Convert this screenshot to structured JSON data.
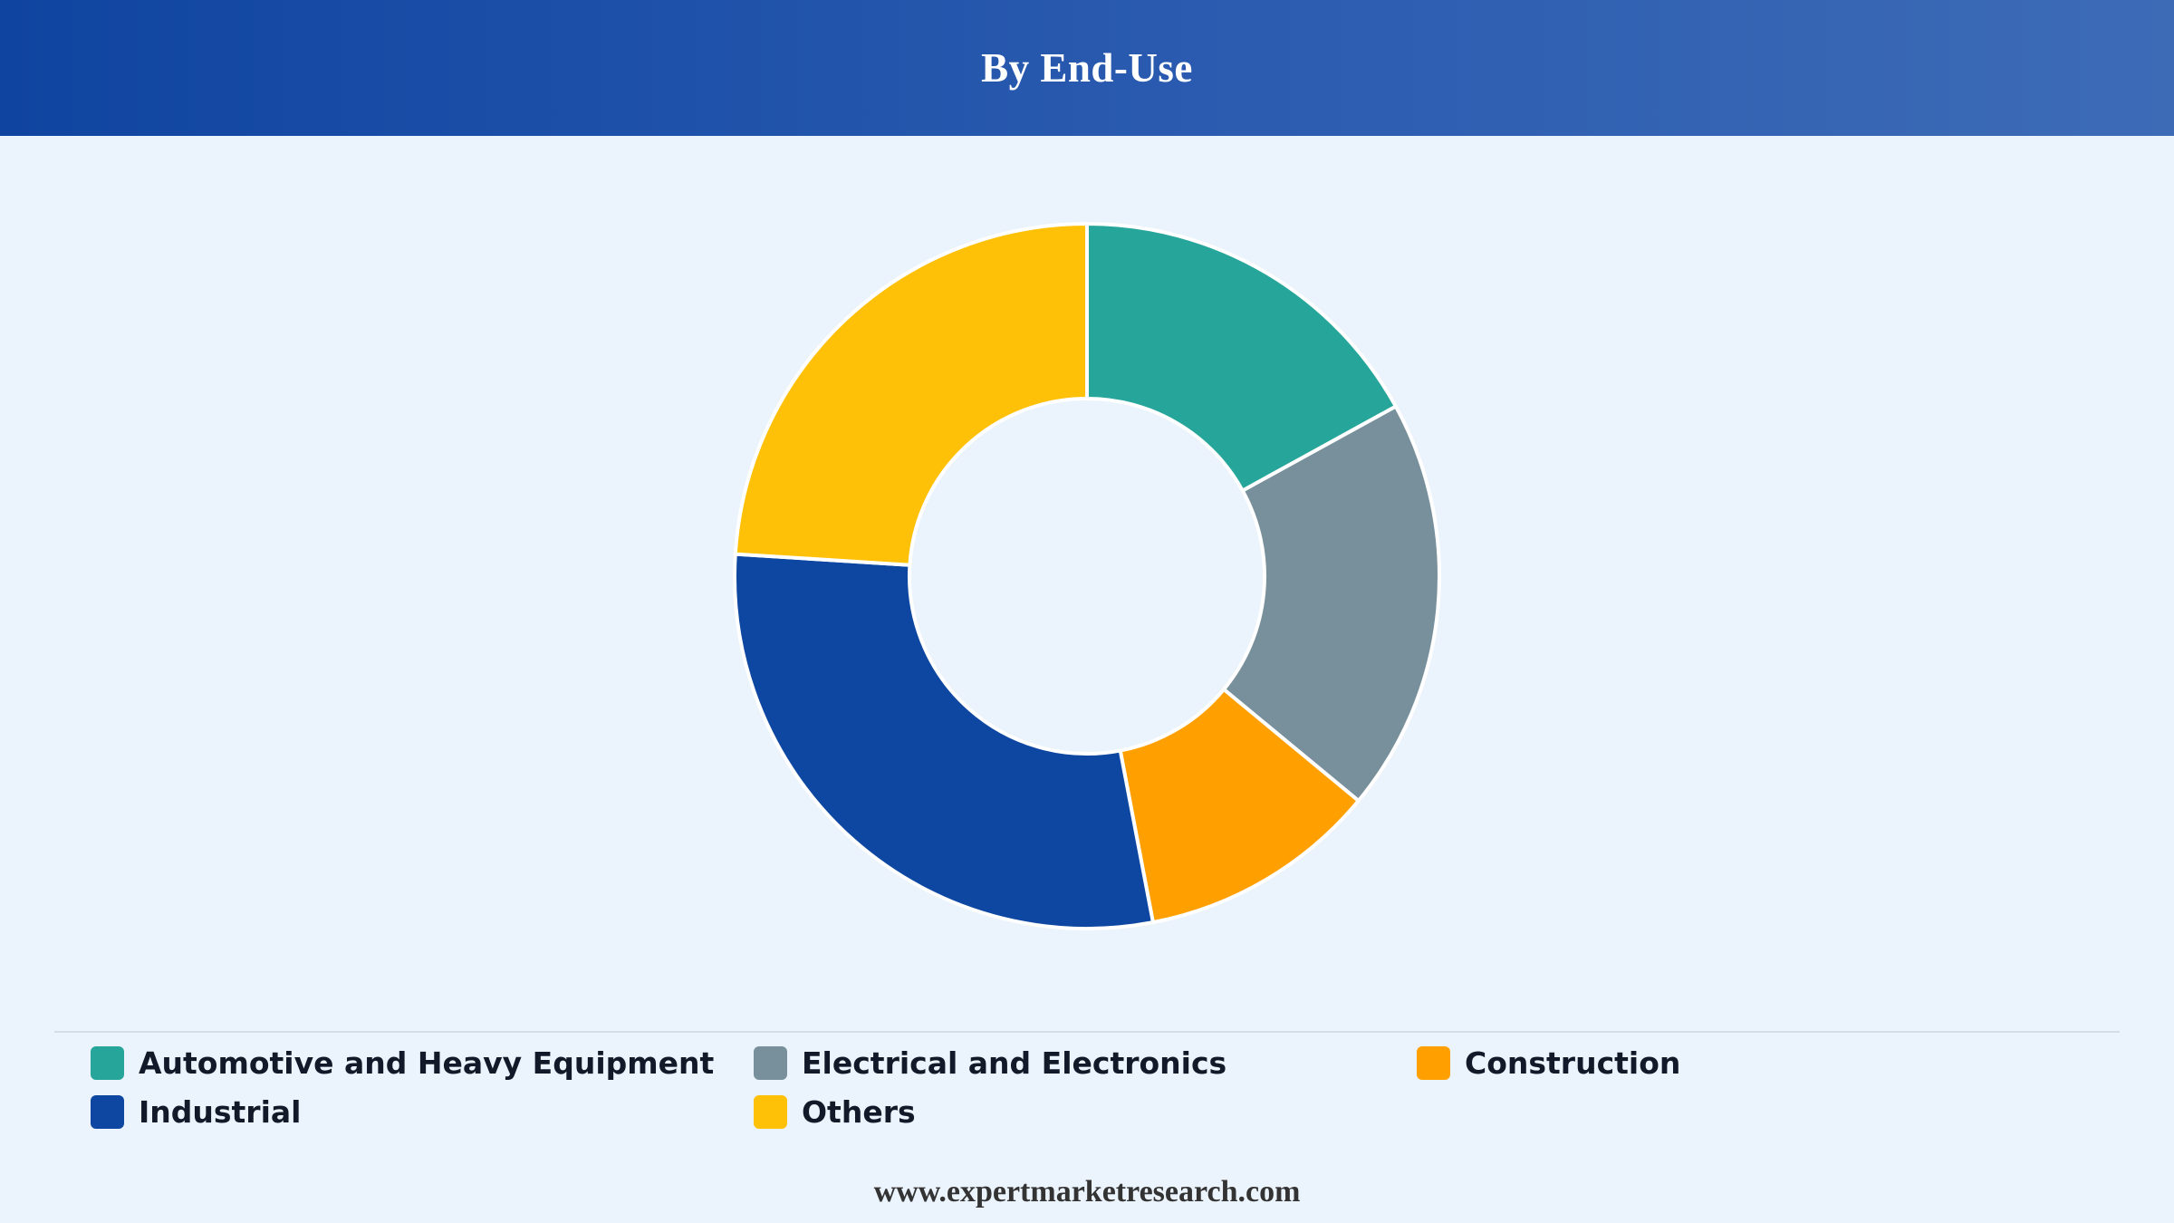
{
  "header": {
    "title": "By End-Use"
  },
  "chart_data": {
    "type": "pie",
    "variant": "donut",
    "categories": [
      "Automotive and Heavy Equipment",
      "Electrical and Electronics",
      "Construction",
      "Industrial",
      "Others"
    ],
    "values": [
      17,
      19,
      11,
      29,
      24
    ],
    "colors": [
      "#26a69a",
      "#78909c",
      "#ffa000",
      "#0d47a1",
      "#ffc107"
    ],
    "legend_position": "bottom"
  },
  "footer": {
    "source": "www.expertmarketresearch.com"
  }
}
